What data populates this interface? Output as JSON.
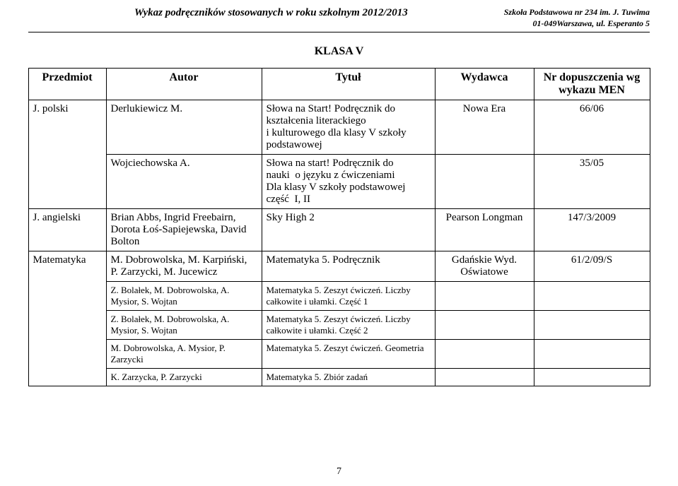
{
  "header": {
    "title": "Wykaz podręczników stosowanych w roku szkolnym 2012/2013",
    "school_line1": "Szkoła Podstawowa nr 234 im. J. Tuwima",
    "school_line2": "01-049Warszawa, ul. Esperanto 5"
  },
  "class_title": "KLASA V",
  "columns": {
    "c1": "Przedmiot",
    "c2": "Autor",
    "c3": "Tytuł",
    "c4": "Wydawca",
    "c5": "Nr dopuszczenia wg wykazu MEN"
  },
  "rows": {
    "r1": {
      "subject": "J. polski",
      "author": "Derlukiewicz M.",
      "title": "Słowa na Start! Podręcznik do kształcenia literackiego\ni kulturowego dla klasy V szkoły podstawowej",
      "publisher": "Nowa Era",
      "approval": "66/06"
    },
    "r2": {
      "author": "Wojciechowska A.",
      "title": "Słowa na start! Podręcznik do nauki  o języku z ćwiczeniami\nDla klasy V szkoły podstawowej część  I, II",
      "approval": "35/05"
    },
    "r3": {
      "subject": "J. angielski",
      "author": "Brian Abbs, Ingrid Freebairn, Dorota Łoś-Sapiejewska, David Bolton",
      "title": "Sky High 2",
      "publisher": "Pearson Longman",
      "approval": "147/3/2009"
    },
    "r4": {
      "subject": "Matematyka",
      "author": "M. Dobrowolska, M. Karpiński, P. Zarzycki, M. Jucewicz",
      "title": "Matematyka 5. Podręcznik",
      "publisher": "Gdańskie Wyd. Oświatowe",
      "approval": "61/2/09/S"
    },
    "r5": {
      "author": "Z. Bolałek, M. Dobrowolska, A. Mysior, S. Wojtan",
      "title": "Matematyka 5. Zeszyt ćwiczeń. Liczby całkowite i ułamki. Część 1"
    },
    "r6": {
      "author": "Z. Bolałek, M. Dobrowolska, A. Mysior, S. Wojtan",
      "title": "Matematyka 5. Zeszyt ćwiczeń. Liczby całkowite i ułamki. Część 2"
    },
    "r7": {
      "author": "M. Dobrowolska, A. Mysior, P. Zarzycki",
      "title": "Matematyka 5. Zeszyt ćwiczeń. Geometria"
    },
    "r8": {
      "author": "K. Zarzycka, P. Zarzycki",
      "title": "Matematyka 5. Zbiór zadań"
    }
  },
  "page_number": "7"
}
